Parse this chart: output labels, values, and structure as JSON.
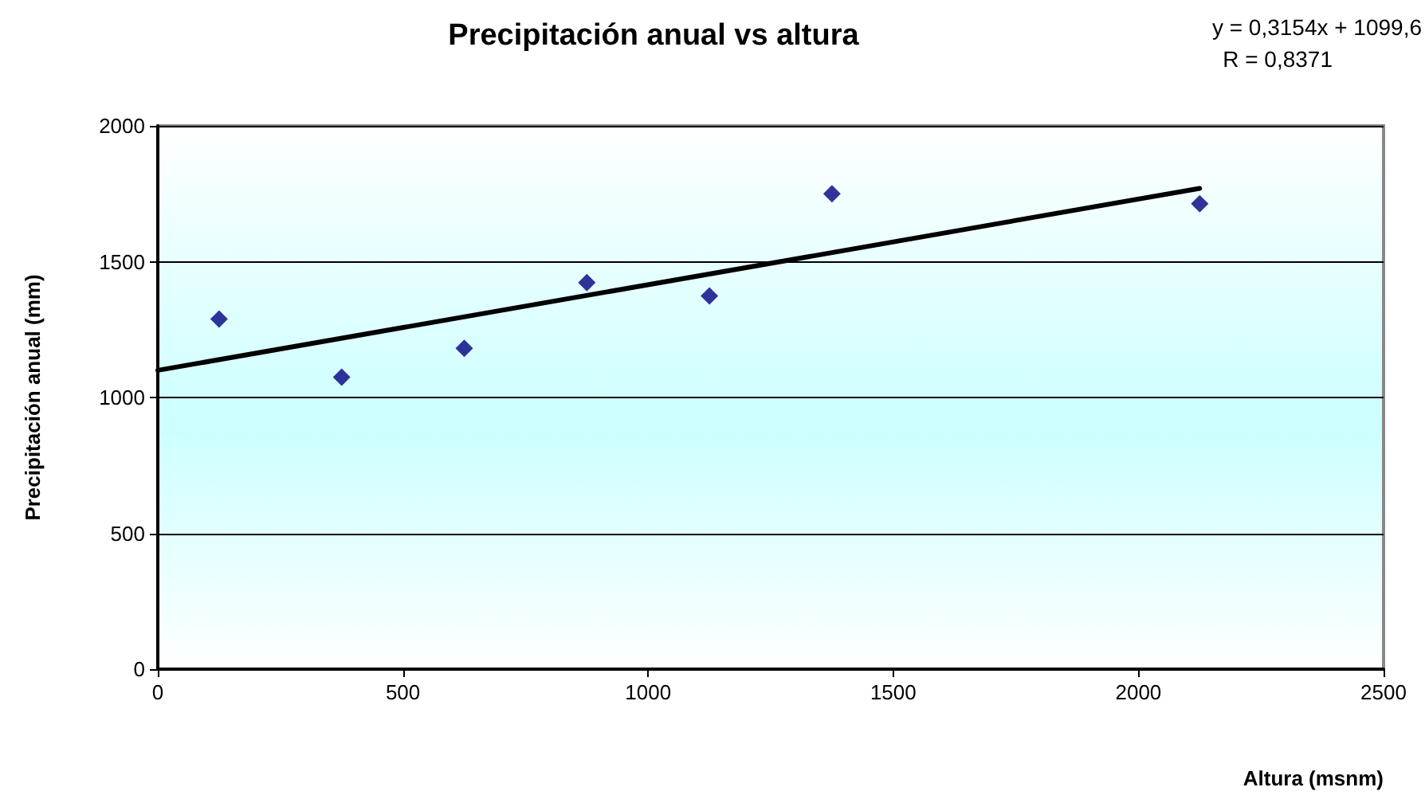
{
  "chart_data": {
    "type": "scatter",
    "title": "Precipitación anual vs altura",
    "xlabel": "Altura (msnm)",
    "ylabel": "Precipitación anual (mm)",
    "annotations": [
      "y = 0,3154x + 1099,6",
      "R = 0,8371"
    ],
    "xlim": [
      0,
      2500
    ],
    "xticks": [
      0,
      500,
      1000,
      1500,
      2000,
      2500
    ],
    "ylim": [
      0,
      2000
    ],
    "yticks": [
      0,
      500,
      1000,
      1500,
      2000
    ],
    "grid": "y",
    "marker": "diamond",
    "series": [
      {
        "color": "#000080",
        "x": [
          125,
          375,
          625,
          875,
          1125,
          1375,
          2125
        ],
        "values": [
          1289,
          1075,
          1181,
          1423,
          1374,
          1750,
          1713
        ]
      },
      {
        "type": "line",
        "color": "#000000",
        "marker": "none",
        "line_style": "solid",
        "x": [
          0,
          2125
        ],
        "values": [
          1100,
          1770
        ]
      }
    ]
  }
}
